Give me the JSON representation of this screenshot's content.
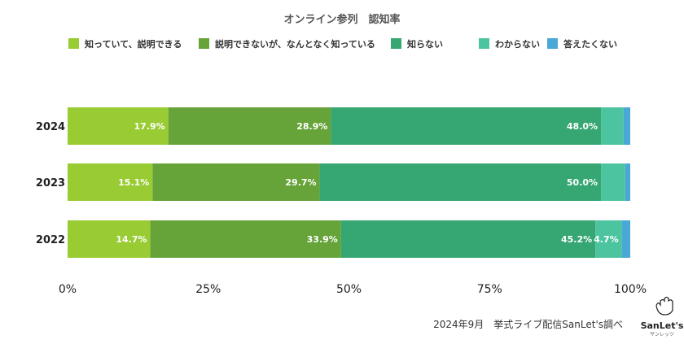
{
  "chart_data": {
    "type": "bar",
    "orientation": "horizontal-stacked-100",
    "title": "オンライン参列　認知率",
    "categories": [
      "2024",
      "2023",
      "2022"
    ],
    "series": [
      {
        "name": "知っていて、説明できる",
        "color": "#99cc33",
        "values": [
          17.9,
          15.1,
          14.7
        ],
        "labels": [
          "17.9%",
          "15.1%",
          "14.7%"
        ]
      },
      {
        "name": "説明できないが、なんとなく知っている",
        "color": "#66a338",
        "values": [
          28.9,
          29.7,
          33.9
        ],
        "labels": [
          "28.9%",
          "29.7%",
          "33.9%"
        ]
      },
      {
        "name": "知らない",
        "color": "#36a672",
        "values": [
          48.0,
          50.0,
          45.2
        ],
        "labels": [
          "48.0%",
          "50.0%",
          "45.2%"
        ]
      },
      {
        "name": "わからない",
        "color": "#4cc4a0",
        "values": [
          4.0,
          4.3,
          4.7
        ],
        "labels": [
          "",
          "",
          "4.7%"
        ]
      },
      {
        "name": "答えたくない",
        "color": "#4aa8d6",
        "values": [
          1.2,
          0.9,
          1.5
        ],
        "labels": [
          "",
          "",
          ""
        ]
      }
    ],
    "x_ticks": [
      "0%",
      "25%",
      "50%",
      "75%",
      "100%"
    ],
    "xlim": [
      0,
      100
    ],
    "grid": false,
    "legend_position": "top"
  },
  "source_note": "2024年9月　挙式ライブ配信SanLet's調べ",
  "logo": {
    "text": "SanLet's",
    "subtext": "サンレッツ"
  }
}
